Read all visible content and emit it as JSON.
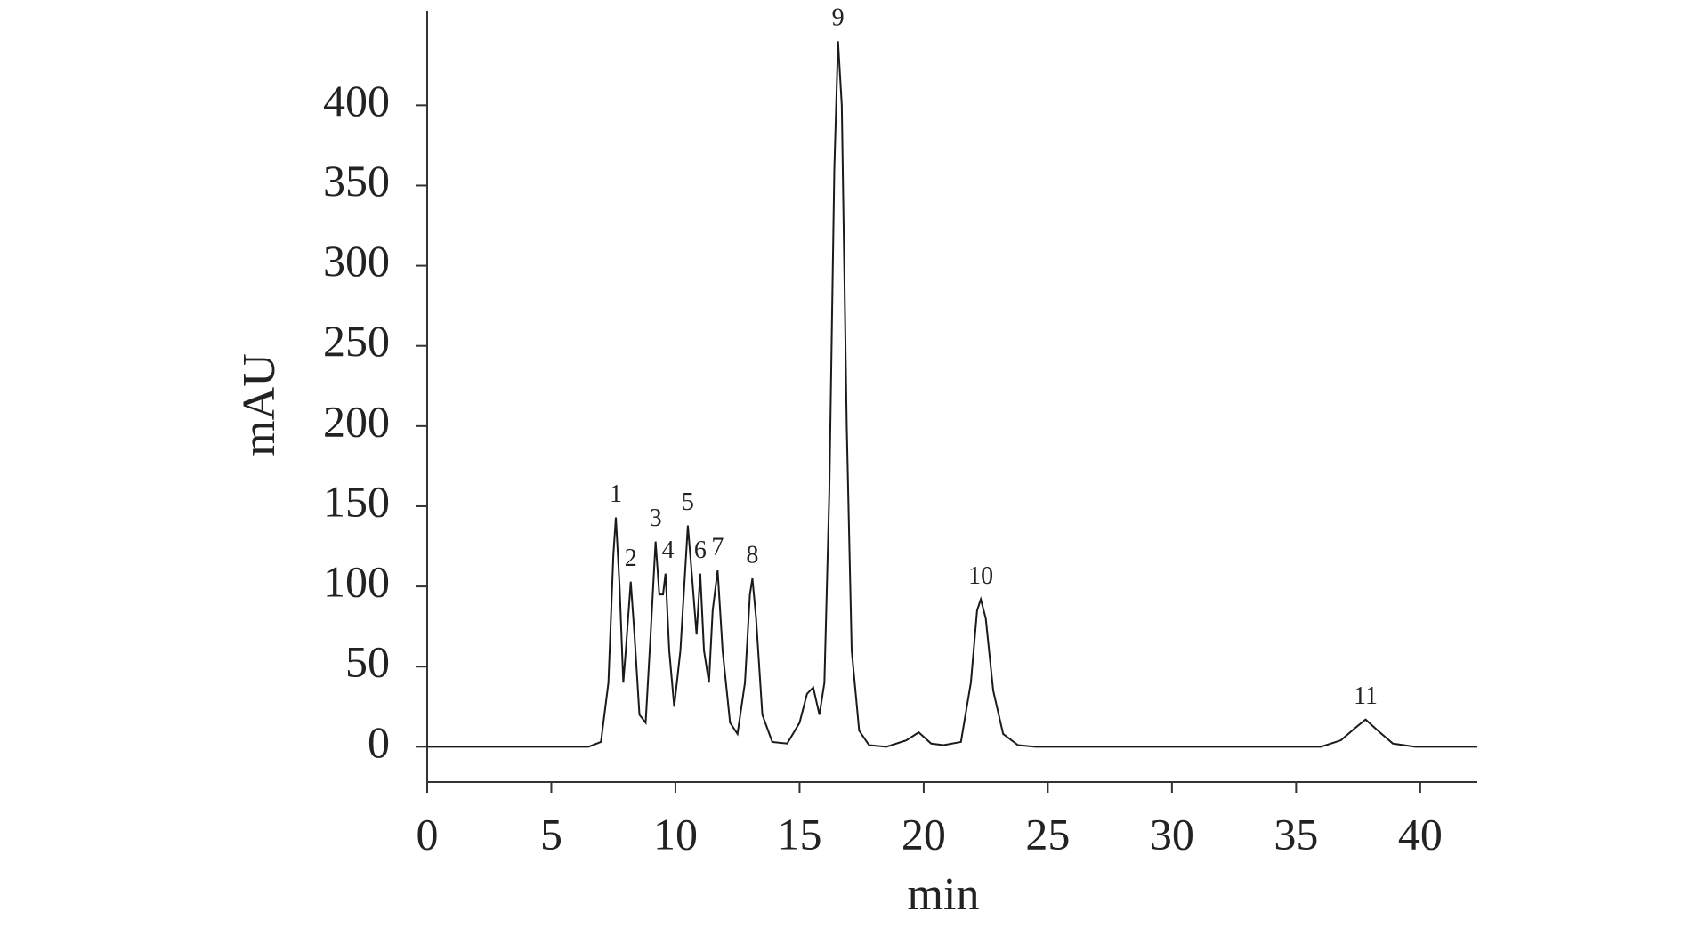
{
  "chart_data": {
    "type": "line",
    "x_label": "min",
    "y_label": "mAU",
    "xlim": [
      0,
      42.3
    ],
    "ylim": [
      -22,
      459
    ],
    "xticks": [
      0,
      5,
      10,
      15,
      20,
      25,
      30,
      35,
      40
    ],
    "yticks": [
      0,
      50,
      100,
      150,
      200,
      250,
      300,
      350,
      400
    ],
    "color": "#1a1a1a",
    "x": [
      0,
      6.5,
      7.0,
      7.3,
      7.5,
      7.6,
      7.75,
      7.9,
      8.0,
      8.2,
      8.35,
      8.55,
      8.8,
      9.0,
      9.2,
      9.35,
      9.5,
      9.6,
      9.75,
      9.95,
      10.2,
      10.5,
      10.7,
      10.85,
      11.0,
      11.15,
      11.35,
      11.5,
      11.7,
      11.9,
      12.2,
      12.5,
      12.8,
      13.0,
      13.1,
      13.25,
      13.5,
      13.9,
      14.5,
      15.0,
      15.3,
      15.55,
      15.8,
      16.0,
      16.2,
      16.4,
      16.55,
      16.7,
      16.9,
      17.1,
      17.4,
      17.8,
      18.5,
      19.3,
      19.8,
      20.3,
      20.8,
      21.5,
      21.9,
      22.15,
      22.3,
      22.5,
      22.8,
      23.2,
      23.8,
      24.5,
      36,
      36.8,
      37.4,
      37.8,
      38.3,
      38.9,
      39.8,
      42.3
    ],
    "values": [
      0,
      0,
      3,
      40,
      120,
      143,
      100,
      40,
      60,
      103,
      70,
      20,
      15,
      70,
      128,
      95,
      95,
      108,
      60,
      25,
      60,
      138,
      100,
      70,
      108,
      60,
      40,
      85,
      110,
      60,
      15,
      8,
      40,
      95,
      105,
      80,
      20,
      3,
      2,
      15,
      33,
      37,
      20,
      40,
      160,
      360,
      440,
      400,
      200,
      60,
      10,
      1,
      0,
      4,
      9,
      2,
      1,
      3,
      40,
      85,
      92,
      80,
      35,
      8,
      1,
      0,
      0,
      4,
      12,
      17,
      10,
      2,
      0,
      0
    ],
    "peaks": [
      {
        "label": "1",
        "x": 7.6,
        "y": 143
      },
      {
        "label": "2",
        "x": 8.2,
        "y": 103
      },
      {
        "label": "3",
        "x": 9.2,
        "y": 128
      },
      {
        "label": "4",
        "x": 9.7,
        "y": 108
      },
      {
        "label": "5",
        "x": 10.5,
        "y": 138
      },
      {
        "label": "6",
        "x": 11.0,
        "y": 108
      },
      {
        "label": "7",
        "x": 11.7,
        "y": 110
      },
      {
        "label": "8",
        "x": 13.1,
        "y": 105
      },
      {
        "label": "9",
        "x": 16.55,
        "y": 440
      },
      {
        "label": "10",
        "x": 22.3,
        "y": 92
      },
      {
        "label": "11",
        "x": 37.8,
        "y": 17
      }
    ]
  }
}
